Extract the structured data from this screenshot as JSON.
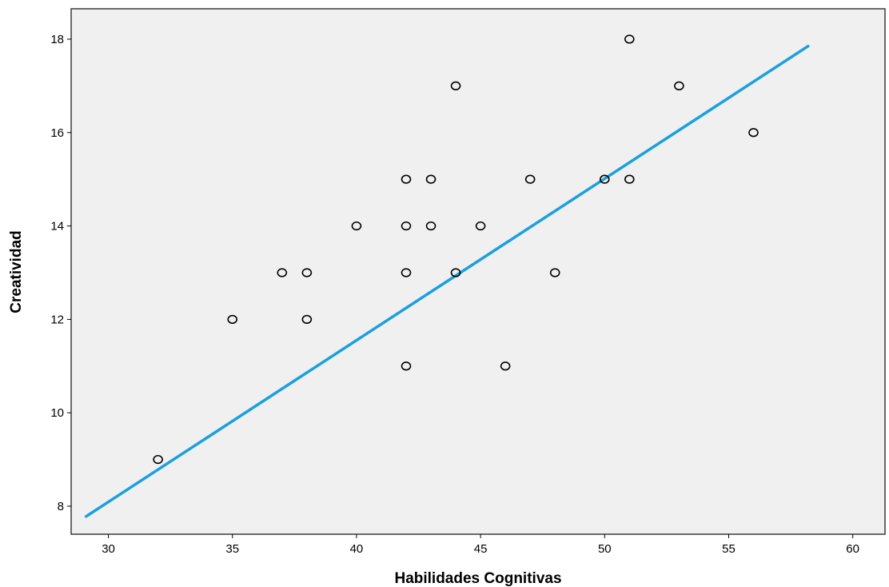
{
  "chart_data": {
    "type": "scatter",
    "title": "",
    "xlabel": "Habilidades Cognitivas",
    "ylabel": "Creatividad",
    "xlim": [
      28.5,
      61.3
    ],
    "ylim": [
      7.4,
      18.65
    ],
    "xticks": [
      30,
      35,
      40,
      45,
      50,
      55,
      60
    ],
    "yticks": [
      8,
      10,
      12,
      14,
      16,
      18
    ],
    "grid": false,
    "series": [
      {
        "type": "scatter",
        "x": [
          32,
          35,
          37,
          38,
          38,
          40,
          42,
          42,
          42,
          42,
          43,
          43,
          44,
          44,
          45,
          46,
          47,
          48,
          50,
          51,
          51,
          53,
          56
        ],
        "y": [
          9,
          12,
          13,
          13,
          12,
          14,
          15,
          14,
          13,
          11,
          15,
          14,
          17,
          13,
          14,
          11,
          15,
          13,
          15,
          18,
          15,
          17,
          16
        ]
      },
      {
        "type": "line",
        "x": [
          29.1,
          58.2
        ],
        "y": [
          7.78,
          17.85
        ]
      }
    ],
    "colors": {
      "plot_background": "#f0f0f0",
      "marker_stroke": "#000000",
      "fit_line": "#1a9fe0"
    }
  }
}
